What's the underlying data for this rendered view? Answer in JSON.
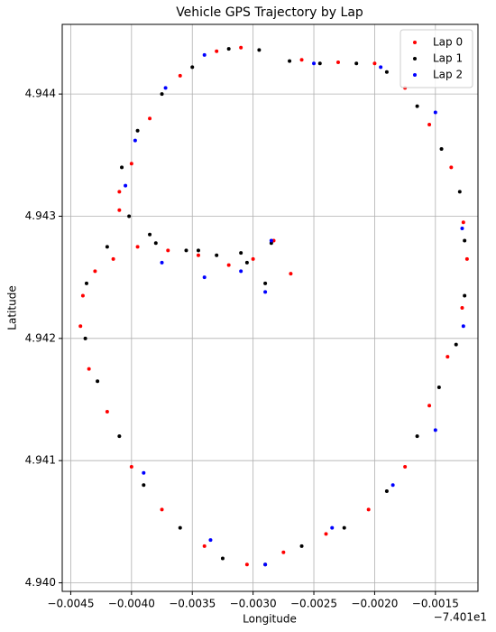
{
  "chart_data": {
    "type": "scatter",
    "title": "Vehicle GPS Trajectory by Lap",
    "x_label": "Longitude",
    "y_label": "Latitude",
    "x_offset_label": "−7.401e1",
    "xlim": [
      -0.00457,
      -0.00115
    ],
    "ylim": [
      4.93993,
      4.94457
    ],
    "xticks": [
      {
        "value": -0.0045,
        "label": "−0.0045"
      },
      {
        "value": -0.004,
        "label": "−0.0040"
      },
      {
        "value": -0.0035,
        "label": "−0.0035"
      },
      {
        "value": -0.003,
        "label": "−0.0030"
      },
      {
        "value": -0.0025,
        "label": "−0.0025"
      },
      {
        "value": -0.002,
        "label": "−0.0020"
      },
      {
        "value": -0.0015,
        "label": "−0.0015"
      }
    ],
    "yticks": [
      {
        "value": 4.94,
        "label": "4.940"
      },
      {
        "value": 4.941,
        "label": "4.941"
      },
      {
        "value": 4.942,
        "label": "4.942"
      },
      {
        "value": 4.943,
        "label": "4.943"
      },
      {
        "value": 4.944,
        "label": "4.944"
      }
    ],
    "grid": true,
    "legend": "upper right",
    "series": [
      {
        "name": "Lap 0",
        "color": "red",
        "x": [
          -0.00269,
          -0.00283,
          -0.003,
          -0.0032,
          -0.00345,
          -0.0037,
          -0.00395,
          -0.0041,
          -0.0041,
          -0.004,
          -0.00385,
          -0.0036,
          -0.0033,
          -0.0031,
          -0.0026,
          -0.0023,
          -0.002,
          -0.00175,
          -0.00155,
          -0.00137,
          -0.00127,
          -0.00124,
          -0.00128,
          -0.0014,
          -0.00155,
          -0.00175,
          -0.00205,
          -0.0024,
          -0.00275,
          -0.00305,
          -0.0034,
          -0.00375,
          -0.004,
          -0.0042,
          -0.00435,
          -0.00442,
          -0.0044,
          -0.0043,
          -0.00415
        ],
        "values": [
          4.94253,
          4.9428,
          4.94265,
          4.9426,
          4.94268,
          4.94272,
          4.94275,
          4.94305,
          4.9432,
          4.94343,
          4.9438,
          4.94415,
          4.94435,
          4.94438,
          4.94428,
          4.94426,
          4.94425,
          4.94405,
          4.94375,
          4.9434,
          4.94295,
          4.94265,
          4.94225,
          4.94185,
          4.94145,
          4.94095,
          4.9406,
          4.9404,
          4.94025,
          4.94015,
          4.9403,
          4.9406,
          4.94095,
          4.9414,
          4.94175,
          4.9421,
          4.94235,
          4.94255,
          4.94265
        ]
      },
      {
        "name": "Lap 1",
        "color": "black",
        "x": [
          -0.0029,
          -0.00305,
          -0.0033,
          -0.00355,
          -0.0038,
          -0.00402,
          -0.00408,
          -0.00395,
          -0.00375,
          -0.0035,
          -0.0032,
          -0.00295,
          -0.0027,
          -0.00245,
          -0.00215,
          -0.0019,
          -0.00165,
          -0.00145,
          -0.0013,
          -0.00126,
          -0.00126,
          -0.00133,
          -0.00147,
          -0.00165,
          -0.0019,
          -0.00225,
          -0.0026,
          -0.0029,
          -0.00325,
          -0.0036,
          -0.0039,
          -0.0041,
          -0.00428,
          -0.00438,
          -0.00437,
          -0.0042,
          -0.00385,
          -0.00345,
          -0.0031,
          -0.00285
        ],
        "values": [
          4.94245,
          4.94262,
          4.94268,
          4.94272,
          4.94278,
          4.943,
          4.9434,
          4.9437,
          4.944,
          4.94422,
          4.94437,
          4.94436,
          4.94427,
          4.94425,
          4.94425,
          4.94418,
          4.9439,
          4.94355,
          4.9432,
          4.9428,
          4.94235,
          4.94195,
          4.9416,
          4.9412,
          4.94075,
          4.94045,
          4.9403,
          4.94015,
          4.9402,
          4.94045,
          4.9408,
          4.9412,
          4.94165,
          4.942,
          4.94245,
          4.94275,
          4.94285,
          4.94272,
          4.9427,
          4.94278
        ]
      },
      {
        "name": "Lap 2",
        "color": "blue",
        "x": [
          -0.0029,
          -0.0031,
          -0.0034,
          -0.00375,
          -0.00405,
          -0.00397,
          -0.00372,
          -0.0034,
          -0.0025,
          -0.00195,
          -0.0015,
          -0.00128,
          -0.00127,
          -0.0015,
          -0.00185,
          -0.00235,
          -0.0029,
          -0.00335,
          -0.0039,
          -0.00285
        ],
        "values": [
          4.94238,
          4.94255,
          4.9425,
          4.94262,
          4.94325,
          4.94362,
          4.94405,
          4.94432,
          4.94425,
          4.94422,
          4.94385,
          4.9429,
          4.9421,
          4.94125,
          4.9408,
          4.94045,
          4.94015,
          4.94035,
          4.9409,
          4.9428
        ]
      }
    ]
  }
}
